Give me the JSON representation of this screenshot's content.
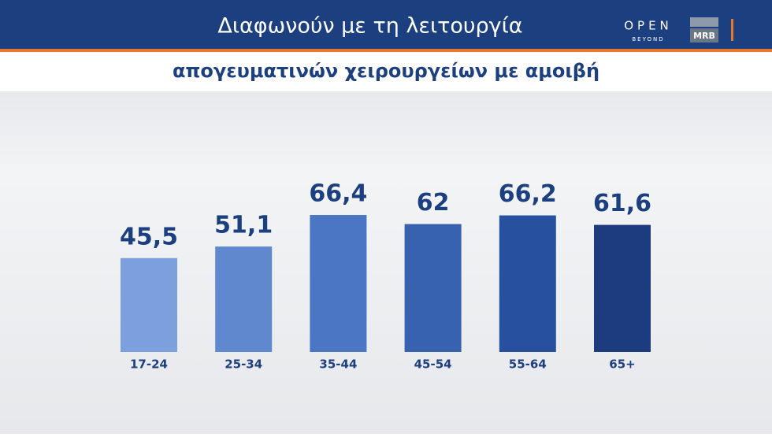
{
  "header": {
    "channel": "OPEN",
    "channel_tagline": "BEYOND",
    "pollster": "MRB"
  },
  "chart_data": {
    "type": "bar",
    "title": "Διαφωνούν με τη λειτουργία",
    "subtitle": "απογευματινών χειρουργείων με αμοιβή",
    "categories": [
      "17-24",
      "25-34",
      "35-44",
      "45-54",
      "55-64",
      "65+"
    ],
    "values": [
      45.5,
      51.1,
      66.4,
      62,
      66.2,
      61.6
    ],
    "value_labels": [
      "45,5",
      "51,1",
      "66,4",
      "62",
      "66,2",
      "61,6"
    ],
    "colors": [
      "#7ba0dd",
      "#5f88cf",
      "#4a76c4",
      "#3662b0",
      "#27509e",
      "#1d3c80"
    ]
  }
}
